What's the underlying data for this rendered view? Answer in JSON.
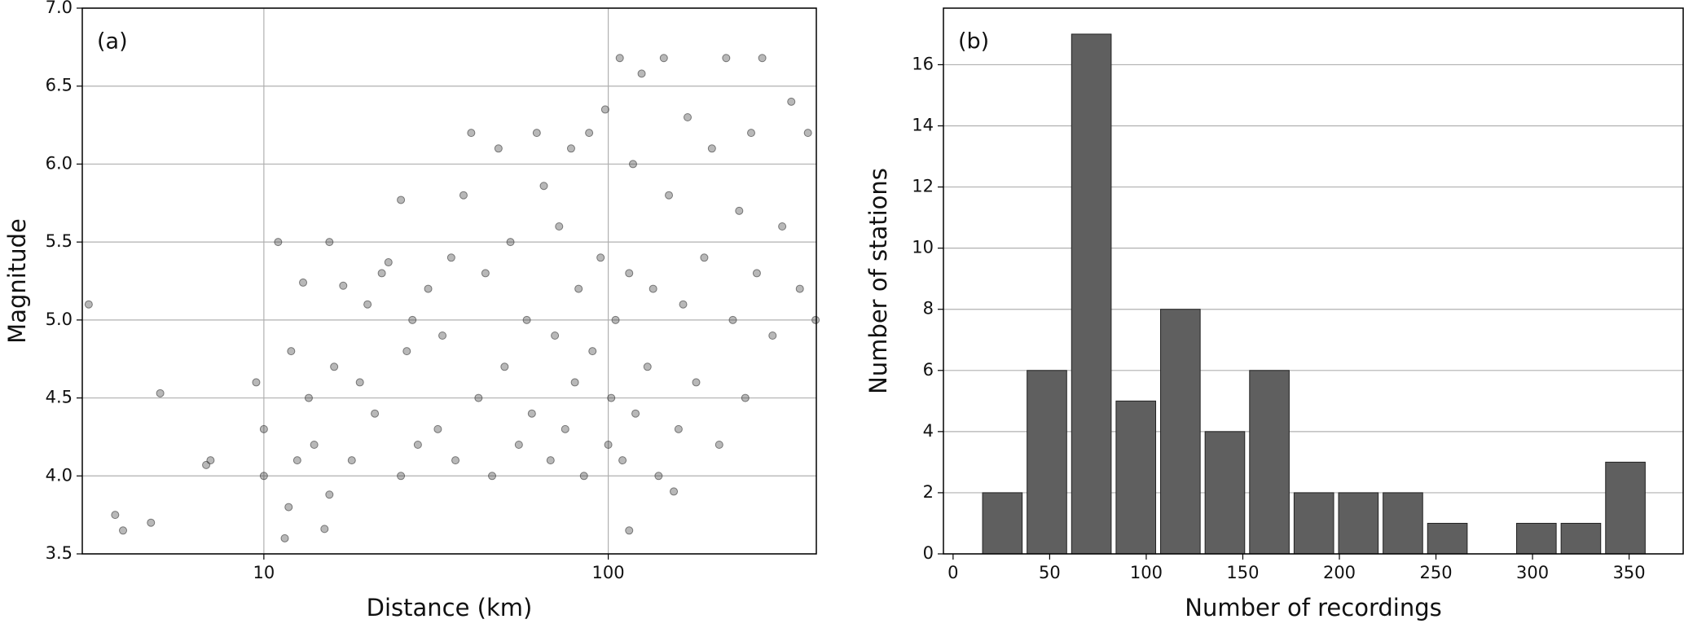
{
  "chart_data": [
    {
      "type": "scatter",
      "label": "(a)",
      "xlabel": "Distance (km)",
      "ylabel": "Magnitude",
      "xscale": "log",
      "xlim": [
        2.97,
        402
      ],
      "xticks": [
        10,
        100
      ],
      "ylim": [
        3.5,
        7.0
      ],
      "yticks": [
        3.5,
        {
          "value": 4.0,
          "label": "4.0"
        },
        4.5,
        {
          "value": 5.0,
          "label": "5.0"
        },
        5.5,
        {
          "value": 6.0,
          "label": "6.0"
        },
        6.5,
        {
          "value": 7.0,
          "label": "7.0"
        }
      ],
      "grid": "both",
      "color": "#333333",
      "x": [
        3.1,
        3.7,
        3.9,
        4.7,
        5.0,
        6.8,
        7.0,
        9.5,
        10,
        10,
        11,
        11.5,
        11.8,
        12,
        12.5,
        13,
        13.5,
        14,
        15,
        15.5,
        15.5,
        16,
        17,
        18,
        19,
        20,
        21,
        22,
        23,
        25,
        25,
        26,
        27,
        28,
        30,
        32,
        33,
        35,
        36,
        38,
        40,
        42,
        44,
        46,
        48,
        50,
        52,
        55,
        58,
        60,
        62,
        65,
        68,
        70,
        72,
        75,
        78,
        80,
        82,
        85,
        88,
        90,
        95,
        98,
        100,
        102,
        105,
        108,
        110,
        115,
        118,
        120,
        125,
        130,
        135,
        140,
        145,
        150,
        155,
        160,
        165,
        170,
        180,
        190,
        200,
        210,
        220,
        230,
        240,
        250,
        260,
        270,
        280,
        300,
        320,
        340,
        360,
        380,
        400,
        115
      ],
      "values": [
        5.1,
        3.75,
        3.65,
        3.7,
        4.53,
        4.07,
        4.1,
        4.6,
        4.3,
        4.0,
        5.5,
        3.6,
        3.8,
        4.8,
        4.1,
        5.24,
        4.5,
        4.2,
        3.66,
        3.88,
        5.5,
        4.7,
        5.22,
        4.1,
        4.6,
        5.1,
        4.4,
        5.3,
        5.37,
        5.77,
        4.0,
        4.8,
        5.0,
        4.2,
        5.2,
        4.3,
        4.9,
        5.4,
        4.1,
        5.8,
        6.2,
        4.5,
        5.3,
        4.0,
        6.1,
        4.7,
        5.5,
        4.2,
        5.0,
        4.4,
        6.2,
        5.86,
        4.1,
        4.9,
        5.6,
        4.3,
        6.1,
        4.6,
        5.2,
        4.0,
        6.2,
        4.8,
        5.4,
        6.35,
        4.2,
        4.5,
        5.0,
        6.68,
        4.1,
        5.3,
        6.0,
        4.4,
        6.58,
        4.7,
        5.2,
        4.0,
        6.68,
        5.8,
        3.9,
        4.3,
        5.1,
        6.3,
        4.6,
        5.4,
        6.1,
        4.2,
        6.68,
        5.0,
        5.7,
        4.5,
        6.2,
        5.3,
        6.68,
        4.9,
        5.6,
        6.4,
        5.2,
        6.2,
        5.0,
        3.65
      ]
    },
    {
      "type": "histogram",
      "label": "(b)",
      "xlabel": "Number of recordings",
      "ylabel": "Number of stations",
      "xlim": [
        -5,
        378
      ],
      "xticks": [
        0,
        50,
        100,
        150,
        200,
        250,
        300,
        350
      ],
      "ylim": [
        0,
        17.85
      ],
      "yticks": [
        0,
        2,
        4,
        6,
        8,
        10,
        12,
        14,
        16
      ],
      "grid": "y",
      "color": "#5f5f5f",
      "bins": [
        14,
        37.04,
        60.08,
        83.12,
        106.16,
        129.2,
        152.24,
        175.28,
        198.32,
        221.36,
        244.4,
        267.44,
        290.48,
        313.52,
        336.56,
        359.6
      ],
      "values": [
        2,
        6,
        17,
        5,
        8,
        4,
        6,
        2,
        2,
        2,
        1,
        0,
        1,
        1,
        3
      ]
    }
  ]
}
